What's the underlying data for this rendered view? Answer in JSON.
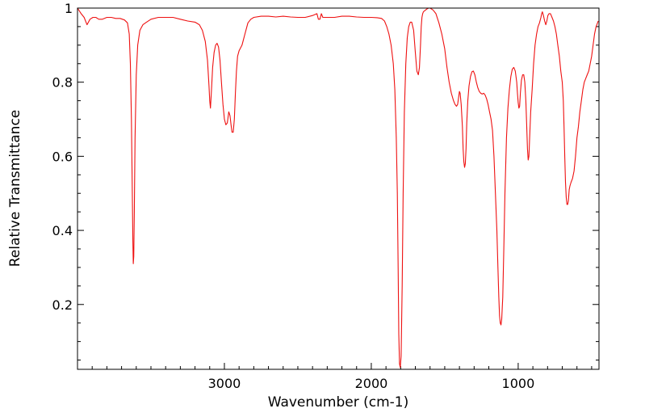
{
  "chart_data": {
    "type": "line",
    "title": "",
    "xlabel": "Wavenumber (cm-1)",
    "ylabel": "Relative Transmittance",
    "xlim": [
      4000,
      450
    ],
    "ylim": [
      0.025,
      1.0
    ],
    "x_reversed": true,
    "grid": false,
    "legend": "none",
    "x_ticks": [
      {
        "value": 3000,
        "label": "3000"
      },
      {
        "value": 2000,
        "label": "2000"
      },
      {
        "value": 1000,
        "label": "1000"
      }
    ],
    "y_ticks": [
      {
        "value": 0.2,
        "label": "0.2"
      },
      {
        "value": 0.4,
        "label": "0.4"
      },
      {
        "value": 0.6,
        "label": "0.6"
      },
      {
        "value": 0.8,
        "label": "0.8"
      },
      {
        "value": 1.0,
        "label": "1"
      }
    ],
    "series": [
      {
        "color": "#ee1111",
        "x": [
          4000,
          3975,
          3955,
          3935,
          3915,
          3895,
          3875,
          3855,
          3830,
          3800,
          3770,
          3740,
          3710,
          3680,
          3660,
          3648,
          3640,
          3633,
          3627,
          3623,
          3620,
          3617,
          3613,
          3608,
          3600,
          3590,
          3575,
          3555,
          3530,
          3500,
          3450,
          3400,
          3350,
          3300,
          3250,
          3200,
          3170,
          3150,
          3130,
          3115,
          3105,
          3100,
          3095,
          3088,
          3080,
          3070,
          3060,
          3050,
          3040,
          3030,
          3020,
          3010,
          3000,
          2990,
          2980,
          2970,
          2962,
          2955,
          2948,
          2940,
          2932,
          2925,
          2918,
          2910,
          2900,
          2880,
          2860,
          2840,
          2820,
          2800,
          2750,
          2700,
          2650,
          2600,
          2550,
          2500,
          2450,
          2400,
          2370,
          2360,
          2350,
          2340,
          2330,
          2300,
          2250,
          2200,
          2150,
          2100,
          2050,
          2000,
          1960,
          1930,
          1910,
          1895,
          1880,
          1865,
          1850,
          1840,
          1830,
          1823,
          1817,
          1813,
          1808,
          1803,
          1797,
          1790,
          1783,
          1775,
          1765,
          1755,
          1745,
          1735,
          1725,
          1712,
          1700,
          1690,
          1680,
          1672,
          1665,
          1660,
          1655,
          1650,
          1645,
          1640,
          1630,
          1620,
          1610,
          1600,
          1580,
          1560,
          1540,
          1520,
          1500,
          1485,
          1470,
          1455,
          1440,
          1430,
          1420,
          1412,
          1405,
          1400,
          1395,
          1388,
          1380,
          1375,
          1370,
          1365,
          1360,
          1355,
          1350,
          1343,
          1335,
          1325,
          1315,
          1305,
          1295,
          1285,
          1275,
          1265,
          1255,
          1245,
          1235,
          1225,
          1215,
          1205,
          1195,
          1185,
          1175,
          1165,
          1155,
          1145,
          1138,
          1132,
          1127,
          1122,
          1117,
          1112,
          1105,
          1098,
          1090,
          1080,
          1070,
          1060,
          1050,
          1040,
          1030,
          1020,
          1010,
          1005,
          1000,
          995,
          990,
          985,
          978,
          970,
          962,
          955,
          948,
          942,
          937,
          932,
          927,
          922,
          915,
          905,
          895,
          885,
          875,
          865,
          855,
          845,
          840,
          835,
          828,
          820,
          812,
          805,
          798,
          790,
          780,
          770,
          760,
          750,
          740,
          730,
          720,
          710,
          700,
          693,
          688,
          683,
          678,
          673,
          668,
          663,
          658,
          653,
          648,
          640,
          630,
          620,
          610,
          600,
          590,
          580,
          570,
          560,
          550,
          540,
          530,
          520,
          510,
          500,
          490,
          480,
          470,
          460,
          455
        ],
        "y": [
          1.0,
          0.985,
          0.975,
          0.955,
          0.97,
          0.975,
          0.975,
          0.97,
          0.97,
          0.975,
          0.975,
          0.972,
          0.972,
          0.968,
          0.96,
          0.93,
          0.85,
          0.7,
          0.5,
          0.37,
          0.31,
          0.33,
          0.45,
          0.65,
          0.82,
          0.9,
          0.94,
          0.955,
          0.962,
          0.97,
          0.975,
          0.975,
          0.975,
          0.97,
          0.965,
          0.962,
          0.955,
          0.94,
          0.91,
          0.86,
          0.79,
          0.75,
          0.73,
          0.78,
          0.84,
          0.88,
          0.9,
          0.905,
          0.895,
          0.86,
          0.8,
          0.74,
          0.7,
          0.685,
          0.69,
          0.72,
          0.71,
          0.685,
          0.665,
          0.665,
          0.7,
          0.77,
          0.83,
          0.87,
          0.885,
          0.9,
          0.93,
          0.96,
          0.97,
          0.975,
          0.978,
          0.978,
          0.976,
          0.978,
          0.976,
          0.975,
          0.975,
          0.98,
          0.985,
          0.97,
          0.97,
          0.985,
          0.975,
          0.975,
          0.975,
          0.978,
          0.978,
          0.976,
          0.975,
          0.975,
          0.974,
          0.972,
          0.965,
          0.95,
          0.93,
          0.9,
          0.85,
          0.78,
          0.65,
          0.5,
          0.3,
          0.12,
          0.04,
          0.03,
          0.06,
          0.25,
          0.5,
          0.72,
          0.85,
          0.92,
          0.95,
          0.962,
          0.962,
          0.94,
          0.88,
          0.83,
          0.82,
          0.84,
          0.9,
          0.95,
          0.975,
          0.985,
          0.99,
          0.992,
          0.995,
          0.998,
          1.0,
          1.0,
          0.995,
          0.985,
          0.96,
          0.93,
          0.89,
          0.84,
          0.8,
          0.77,
          0.75,
          0.74,
          0.735,
          0.74,
          0.76,
          0.775,
          0.77,
          0.74,
          0.68,
          0.62,
          0.585,
          0.57,
          0.58,
          0.62,
          0.69,
          0.75,
          0.79,
          0.815,
          0.828,
          0.83,
          0.82,
          0.8,
          0.785,
          0.775,
          0.77,
          0.768,
          0.77,
          0.765,
          0.755,
          0.74,
          0.72,
          0.7,
          0.67,
          0.6,
          0.5,
          0.4,
          0.3,
          0.22,
          0.17,
          0.15,
          0.145,
          0.16,
          0.22,
          0.35,
          0.5,
          0.65,
          0.73,
          0.78,
          0.815,
          0.835,
          0.84,
          0.83,
          0.8,
          0.77,
          0.745,
          0.73,
          0.735,
          0.77,
          0.805,
          0.82,
          0.82,
          0.8,
          0.75,
          0.68,
          0.62,
          0.59,
          0.6,
          0.65,
          0.72,
          0.78,
          0.85,
          0.9,
          0.93,
          0.95,
          0.96,
          0.975,
          0.985,
          0.99,
          0.98,
          0.965,
          0.955,
          0.965,
          0.98,
          0.985,
          0.985,
          0.975,
          0.965,
          0.95,
          0.93,
          0.9,
          0.87,
          0.83,
          0.8,
          0.75,
          0.68,
          0.6,
          0.53,
          0.49,
          0.47,
          0.47,
          0.48,
          0.51,
          0.52,
          0.53,
          0.54,
          0.56,
          0.6,
          0.65,
          0.68,
          0.72,
          0.75,
          0.78,
          0.8,
          0.81,
          0.82,
          0.83,
          0.85,
          0.87,
          0.9,
          0.93,
          0.95,
          0.96,
          0.965
        ]
      }
    ]
  }
}
